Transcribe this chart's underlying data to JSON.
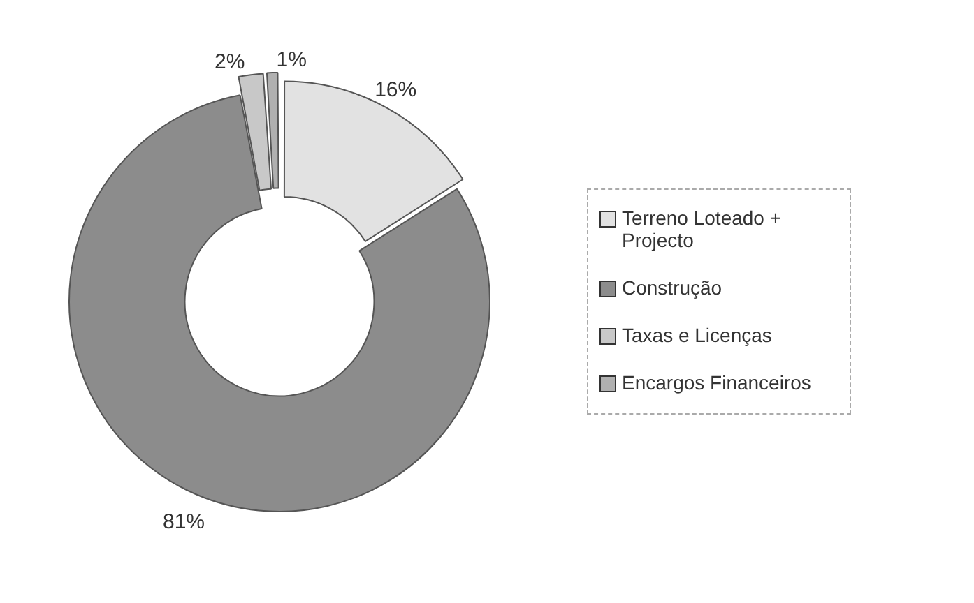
{
  "chart_data": {
    "type": "donut",
    "categories": [
      "Terreno Loteado + Projecto",
      "Construção",
      "Taxas e Licenças",
      "Encargos Financeiros"
    ],
    "values": [
      16,
      81,
      2,
      1
    ],
    "colors": [
      "#e2e2e2",
      "#8c8c8c",
      "#c8c8c8",
      "#b0b0b0"
    ],
    "value_labels": [
      "16%",
      "81%",
      "2%",
      "1%"
    ],
    "legend": "right"
  }
}
